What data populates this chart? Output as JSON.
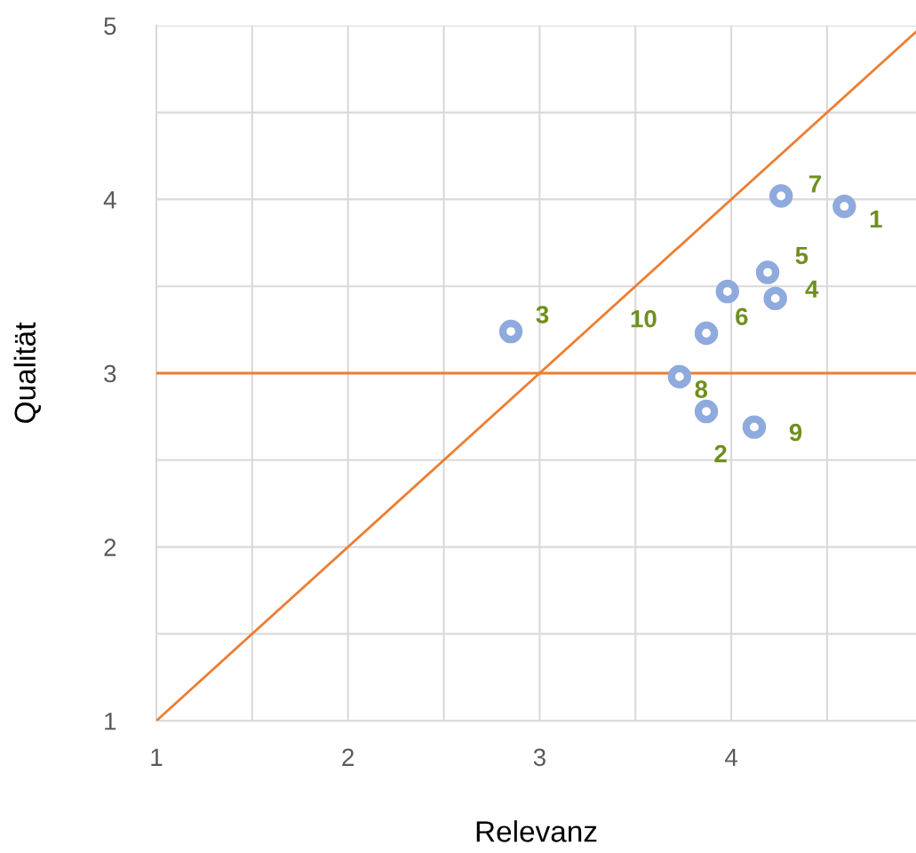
{
  "chart_data": {
    "type": "scatter",
    "xlabel": "Relevanz",
    "ylabel": "Qualität",
    "xlim": [
      1,
      4.964
    ],
    "ylim": [
      1,
      5
    ],
    "xticks": [
      1,
      {
        "value": 1.5,
        "label": null
      },
      2,
      {
        "value": 2.5,
        "label": null
      },
      3,
      {
        "value": 3.5,
        "label": null
      },
      4,
      {
        "value": 4.5,
        "label": null
      }
    ],
    "yticks": [
      1,
      {
        "value": 1.5,
        "label": null
      },
      2,
      {
        "value": 2.5,
        "label": null
      },
      3,
      {
        "value": 3.5,
        "label": null
      },
      4,
      {
        "value": 4.5,
        "label": null
      },
      5
    ],
    "grid": true,
    "series": [
      {
        "marker": "circle",
        "color": "#8faadc",
        "x": [
          4.59,
          3.87,
          2.85,
          4.23,
          4.19,
          3.98,
          4.26,
          3.73,
          4.12,
          3.87
        ],
        "values": [
          3.96,
          2.78,
          3.24,
          3.43,
          3.58,
          3.47,
          4.02,
          2.98,
          2.69,
          3.23
        ]
      },
      {
        "type": "line",
        "color": "#ed7d31",
        "x": [
          1,
          4.964
        ],
        "values": [
          1,
          4.964
        ]
      }
    ],
    "ref_lines": [
      {
        "axis": "y",
        "value": 3,
        "color": "#ed7d31"
      }
    ],
    "annotations": [
      {
        "text": "1",
        "x": 4.59,
        "y": 3.96
      },
      {
        "text": "2",
        "x": 3.87,
        "y": 2.78
      },
      {
        "text": "3",
        "x": 2.85,
        "y": 3.24
      },
      {
        "text": "4",
        "x": 4.23,
        "y": 3.43
      },
      {
        "text": "5",
        "x": 4.19,
        "y": 3.58
      },
      {
        "text": "6",
        "x": 3.98,
        "y": 3.47
      },
      {
        "text": "7",
        "x": 4.26,
        "y": 4.02
      },
      {
        "text": "8",
        "x": 3.73,
        "y": 2.98
      },
      {
        "text": "9",
        "x": 4.12,
        "y": 2.69
      },
      {
        "text": "10",
        "x": 3.87,
        "y": 3.23
      }
    ]
  }
}
